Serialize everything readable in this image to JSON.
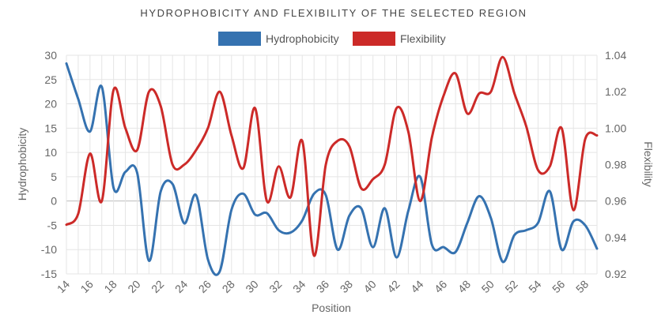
{
  "chart_data": {
    "type": "line",
    "title": "HYDROPHOBICITY AND FLEXIBILITY OF THE SELECTED REGION",
    "xlabel": "Position",
    "x": [
      14,
      15,
      16,
      17,
      18,
      19,
      20,
      21,
      22,
      23,
      24,
      25,
      26,
      27,
      28,
      29,
      30,
      31,
      32,
      33,
      34,
      35,
      36,
      37,
      38,
      39,
      40,
      41,
      42,
      43,
      44,
      45,
      46,
      47,
      48,
      49,
      50,
      51,
      52,
      53,
      54,
      55,
      56,
      57,
      58,
      59
    ],
    "x_ticks": [
      "14",
      "16",
      "18",
      "20",
      "22",
      "24",
      "26",
      "28",
      "30",
      "32",
      "34",
      "36",
      "38",
      "40",
      "42",
      "44",
      "46",
      "48",
      "50",
      "52",
      "54",
      "56",
      "58"
    ],
    "legend_position": "top",
    "grid": true,
    "y_axes": {
      "left": {
        "label": "Hydrophobicity",
        "range": [
          -15,
          30
        ],
        "ticks": [
          "30",
          "25",
          "20",
          "15",
          "10",
          "5",
          "0",
          "-5",
          "-10",
          "-15"
        ]
      },
      "right": {
        "label": "Flexibility",
        "range": [
          0.92,
          1.04
        ],
        "ticks": [
          "1.04",
          "1.02",
          "1.00",
          "0.98",
          "0.96",
          "0.94",
          "0.92"
        ]
      }
    },
    "series": [
      {
        "name": "Hydrophobicity",
        "axis": "left",
        "color": "#3572b0",
        "values": [
          28.3,
          21,
          14.3,
          23.5,
          2.7,
          6,
          5.8,
          -12.3,
          2,
          3.5,
          -4.6,
          1.2,
          -12,
          -14.5,
          -1.8,
          1.5,
          -2.8,
          -2.5,
          -6,
          -6.5,
          -4,
          1.5,
          1.2,
          -10,
          -3,
          -1.5,
          -9.5,
          -1.5,
          -11.6,
          -2,
          5,
          -9,
          -9.5,
          -10.5,
          -4.5,
          1,
          -3.5,
          -12.5,
          -7,
          -6,
          -4.5,
          2,
          -10,
          -4.2,
          -5,
          -9.8
        ]
      },
      {
        "name": "Flexibility",
        "axis": "right",
        "color": "#cc2a28",
        "values": [
          0.947,
          0.953,
          0.986,
          0.96,
          1.021,
          1.0,
          0.988,
          1.02,
          1.012,
          0.98,
          0.98,
          0.988,
          1.0,
          1.02,
          0.996,
          0.978,
          1.011,
          0.96,
          0.979,
          0.962,
          0.993,
          0.93,
          0.98,
          0.993,
          0.99,
          0.967,
          0.972,
          0.98,
          1.011,
          0.998,
          0.96,
          0.995,
          1.018,
          1.03,
          1.008,
          1.019,
          1.02,
          1.039,
          1.019,
          1.001,
          0.977,
          0.979,
          1.0,
          0.955,
          0.994,
          0.996
        ]
      }
    ]
  }
}
